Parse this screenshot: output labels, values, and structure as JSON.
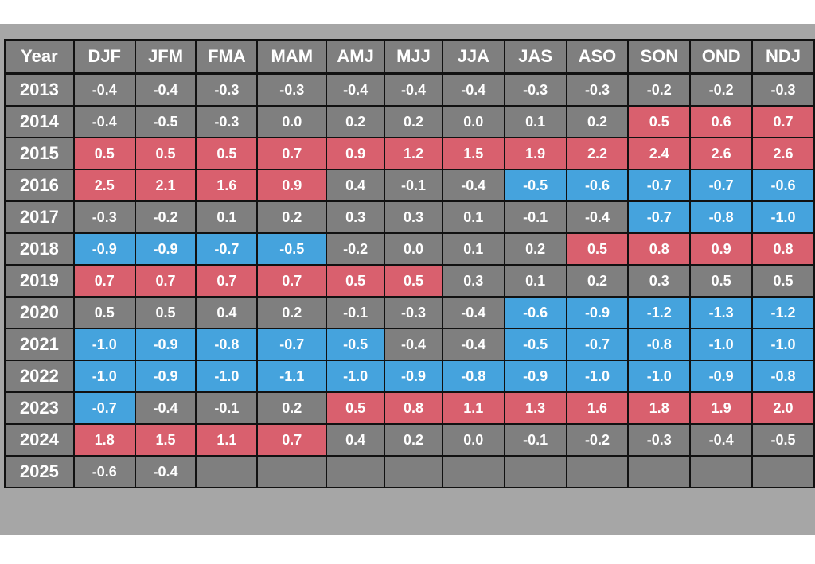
{
  "colors": {
    "frame": "#a6a6a6",
    "neutral": "#7f7f7f",
    "warm": "#d9606e",
    "cool": "#45a3dd",
    "border": "#111111",
    "text": "#ffffff"
  },
  "chart_data": {
    "type": "table",
    "columns": [
      "Year",
      "DJF",
      "JFM",
      "FMA",
      "MAM",
      "AMJ",
      "MJJ",
      "JJA",
      "JAS",
      "ASO",
      "SON",
      "OND",
      "NDJ"
    ],
    "rows": [
      {
        "year": "2013",
        "values": [
          "-0.4",
          "-0.4",
          "-0.3",
          "-0.3",
          "-0.4",
          "-0.4",
          "-0.4",
          "-0.3",
          "-0.3",
          "-0.2",
          "-0.2",
          "-0.3"
        ],
        "colors": [
          "n",
          "n",
          "n",
          "n",
          "n",
          "n",
          "n",
          "n",
          "n",
          "n",
          "n",
          "n"
        ]
      },
      {
        "year": "2014",
        "values": [
          "-0.4",
          "-0.5",
          "-0.3",
          "0.0",
          "0.2",
          "0.2",
          "0.0",
          "0.1",
          "0.2",
          "0.5",
          "0.6",
          "0.7"
        ],
        "colors": [
          "n",
          "n",
          "n",
          "n",
          "n",
          "n",
          "n",
          "n",
          "n",
          "w",
          "w",
          "w"
        ]
      },
      {
        "year": "2015",
        "values": [
          "0.5",
          "0.5",
          "0.5",
          "0.7",
          "0.9",
          "1.2",
          "1.5",
          "1.9",
          "2.2",
          "2.4",
          "2.6",
          "2.6"
        ],
        "colors": [
          "w",
          "w",
          "w",
          "w",
          "w",
          "w",
          "w",
          "w",
          "w",
          "w",
          "w",
          "w"
        ]
      },
      {
        "year": "2016",
        "values": [
          "2.5",
          "2.1",
          "1.6",
          "0.9",
          "0.4",
          "-0.1",
          "-0.4",
          "-0.5",
          "-0.6",
          "-0.7",
          "-0.7",
          "-0.6"
        ],
        "colors": [
          "w",
          "w",
          "w",
          "w",
          "n",
          "n",
          "n",
          "c",
          "c",
          "c",
          "c",
          "c"
        ]
      },
      {
        "year": "2017",
        "values": [
          "-0.3",
          "-0.2",
          "0.1",
          "0.2",
          "0.3",
          "0.3",
          "0.1",
          "-0.1",
          "-0.4",
          "-0.7",
          "-0.8",
          "-1.0"
        ],
        "colors": [
          "n",
          "n",
          "n",
          "n",
          "n",
          "n",
          "n",
          "n",
          "n",
          "c",
          "c",
          "c"
        ]
      },
      {
        "year": "2018",
        "values": [
          "-0.9",
          "-0.9",
          "-0.7",
          "-0.5",
          "-0.2",
          "0.0",
          "0.1",
          "0.2",
          "0.5",
          "0.8",
          "0.9",
          "0.8"
        ],
        "colors": [
          "c",
          "c",
          "c",
          "c",
          "n",
          "n",
          "n",
          "n",
          "w",
          "w",
          "w",
          "w"
        ]
      },
      {
        "year": "2019",
        "values": [
          "0.7",
          "0.7",
          "0.7",
          "0.7",
          "0.5",
          "0.5",
          "0.3",
          "0.1",
          "0.2",
          "0.3",
          "0.5",
          "0.5"
        ],
        "colors": [
          "w",
          "w",
          "w",
          "w",
          "w",
          "w",
          "n",
          "n",
          "n",
          "n",
          "n",
          "n"
        ]
      },
      {
        "year": "2020",
        "values": [
          "0.5",
          "0.5",
          "0.4",
          "0.2",
          "-0.1",
          "-0.3",
          "-0.4",
          "-0.6",
          "-0.9",
          "-1.2",
          "-1.3",
          "-1.2"
        ],
        "colors": [
          "n",
          "n",
          "n",
          "n",
          "n",
          "n",
          "n",
          "c",
          "c",
          "c",
          "c",
          "c"
        ]
      },
      {
        "year": "2021",
        "values": [
          "-1.0",
          "-0.9",
          "-0.8",
          "-0.7",
          "-0.5",
          "-0.4",
          "-0.4",
          "-0.5",
          "-0.7",
          "-0.8",
          "-1.0",
          "-1.0"
        ],
        "colors": [
          "c",
          "c",
          "c",
          "c",
          "c",
          "n",
          "n",
          "c",
          "c",
          "c",
          "c",
          "c"
        ]
      },
      {
        "year": "2022",
        "values": [
          "-1.0",
          "-0.9",
          "-1.0",
          "-1.1",
          "-1.0",
          "-0.9",
          "-0.8",
          "-0.9",
          "-1.0",
          "-1.0",
          "-0.9",
          "-0.8"
        ],
        "colors": [
          "c",
          "c",
          "c",
          "c",
          "c",
          "c",
          "c",
          "c",
          "c",
          "c",
          "c",
          "c"
        ]
      },
      {
        "year": "2023",
        "values": [
          "-0.7",
          "-0.4",
          "-0.1",
          "0.2",
          "0.5",
          "0.8",
          "1.1",
          "1.3",
          "1.6",
          "1.8",
          "1.9",
          "2.0"
        ],
        "colors": [
          "c",
          "n",
          "n",
          "n",
          "w",
          "w",
          "w",
          "w",
          "w",
          "w",
          "w",
          "w"
        ]
      },
      {
        "year": "2024",
        "values": [
          "1.8",
          "1.5",
          "1.1",
          "0.7",
          "0.4",
          "0.2",
          "0.0",
          "-0.1",
          "-0.2",
          "-0.3",
          "-0.4",
          "-0.5"
        ],
        "colors": [
          "w",
          "w",
          "w",
          "w",
          "n",
          "n",
          "n",
          "n",
          "n",
          "n",
          "n",
          "n"
        ]
      },
      {
        "year": "2025",
        "values": [
          "-0.6",
          "-0.4",
          "",
          "",
          "",
          "",
          "",
          "",
          "",
          "",
          "",
          ""
        ],
        "colors": [
          "n",
          "n",
          "n",
          "n",
          "n",
          "n",
          "n",
          "n",
          "n",
          "n",
          "n",
          "n"
        ]
      }
    ]
  }
}
